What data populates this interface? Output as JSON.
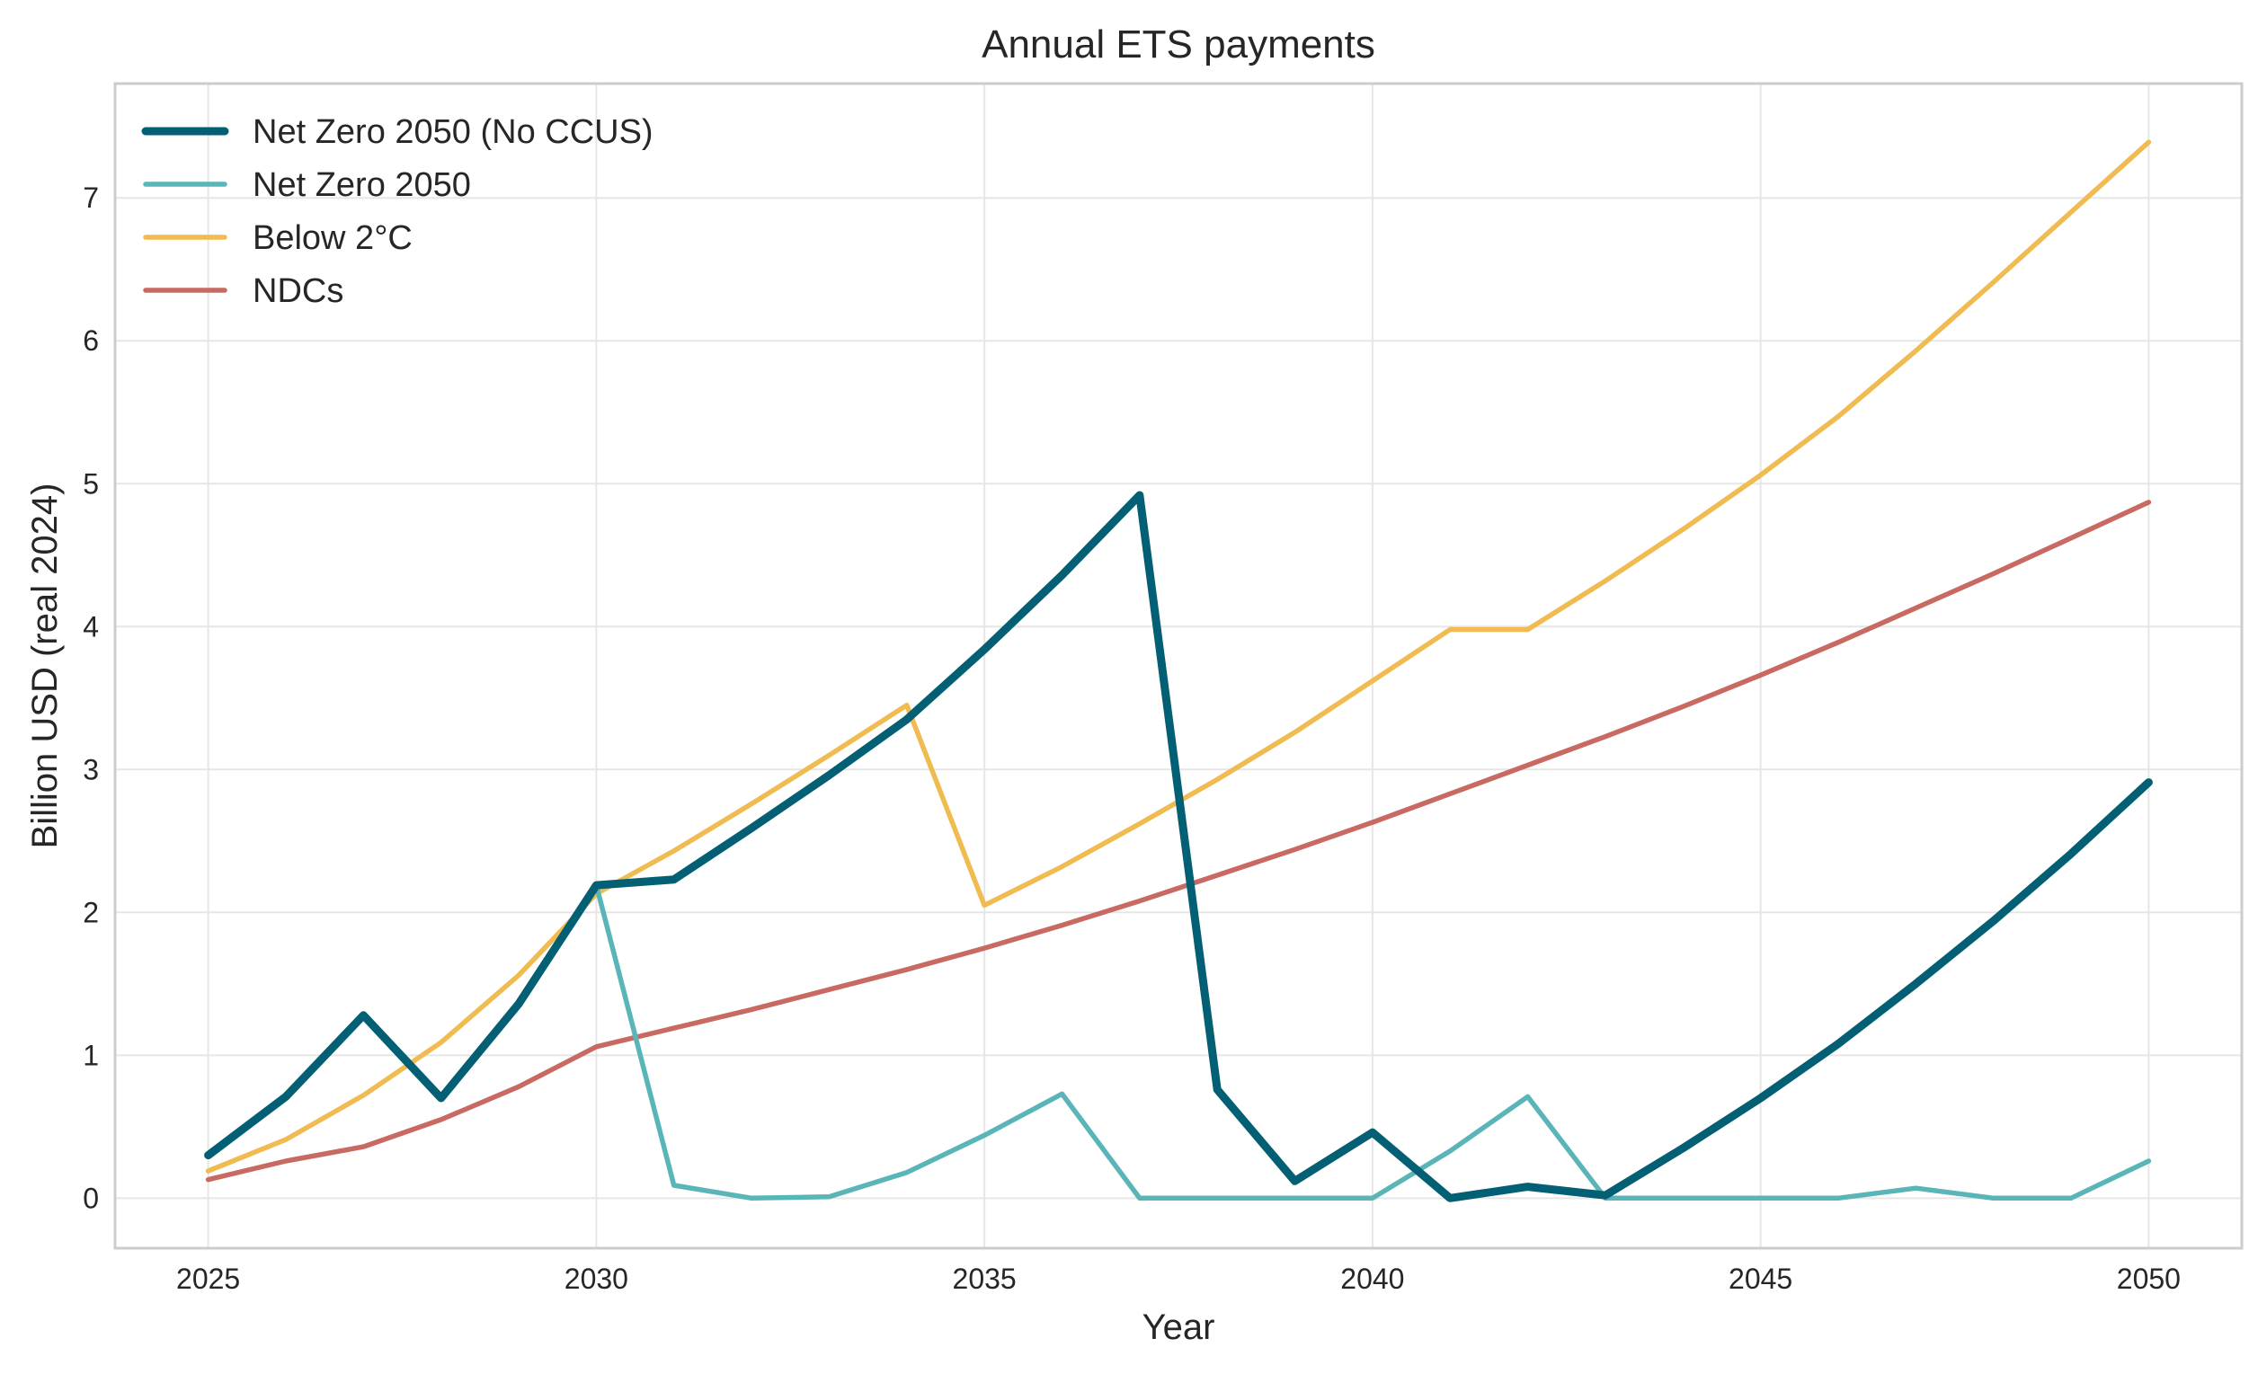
{
  "chart_data": {
    "type": "line",
    "title": "Annual ETS payments",
    "xlabel": "Year",
    "ylabel": "Billion USD (real 2024)",
    "xlim": [
      2023.8,
      2051.2
    ],
    "ylim": [
      -0.35,
      7.8
    ],
    "xticks": [
      2025,
      2030,
      2035,
      2040,
      2045,
      2050
    ],
    "yticks": [
      0,
      1,
      2,
      3,
      4,
      5,
      6,
      7
    ],
    "grid": true,
    "legend_position": "top-left",
    "x": [
      2025,
      2026,
      2027,
      2028,
      2029,
      2030,
      2031,
      2032,
      2033,
      2034,
      2035,
      2036,
      2037,
      2038,
      2039,
      2040,
      2041,
      2042,
      2043,
      2044,
      2045,
      2046,
      2047,
      2048,
      2049,
      2050
    ],
    "series": [
      {
        "name": "Net Zero 2050 (No CCUS)",
        "color": "#035f73",
        "values": [
          0.3,
          0.71,
          1.28,
          0.7,
          1.36,
          2.19,
          2.23,
          2.59,
          2.96,
          3.35,
          3.84,
          4.36,
          4.92,
          0.76,
          0.12,
          0.46,
          0.0,
          0.08,
          0.02,
          0.35,
          0.7,
          1.08,
          1.5,
          1.94,
          2.41,
          2.91
        ]
      },
      {
        "name": "Net Zero 2050",
        "color": "#5ab5b8",
        "values": [
          0.3,
          0.71,
          1.28,
          0.7,
          1.36,
          2.19,
          0.09,
          0.0,
          0.01,
          0.18,
          0.44,
          0.73,
          0.0,
          0.0,
          0.0,
          0.0,
          0.33,
          0.71,
          0.0,
          0.0,
          0.0,
          0.0,
          0.07,
          0.0,
          0.0,
          0.26
        ]
      },
      {
        "name": "Below 2°C",
        "color": "#f0bb50",
        "values": [
          0.19,
          0.41,
          0.72,
          1.09,
          1.56,
          2.13,
          2.43,
          2.76,
          3.1,
          3.45,
          2.05,
          2.32,
          2.62,
          2.93,
          3.26,
          3.62,
          3.98,
          3.98,
          4.32,
          4.68,
          5.06,
          5.47,
          5.93,
          6.41,
          6.9,
          7.39
        ]
      },
      {
        "name": "NDCs",
        "color": "#c86a62",
        "values": [
          0.13,
          0.26,
          0.36,
          0.55,
          0.78,
          1.06,
          1.19,
          1.32,
          1.46,
          1.6,
          1.75,
          1.91,
          2.08,
          2.26,
          2.44,
          2.63,
          2.83,
          3.03,
          3.23,
          3.44,
          3.66,
          3.89,
          4.13,
          4.37,
          4.62,
          4.87
        ]
      }
    ]
  }
}
